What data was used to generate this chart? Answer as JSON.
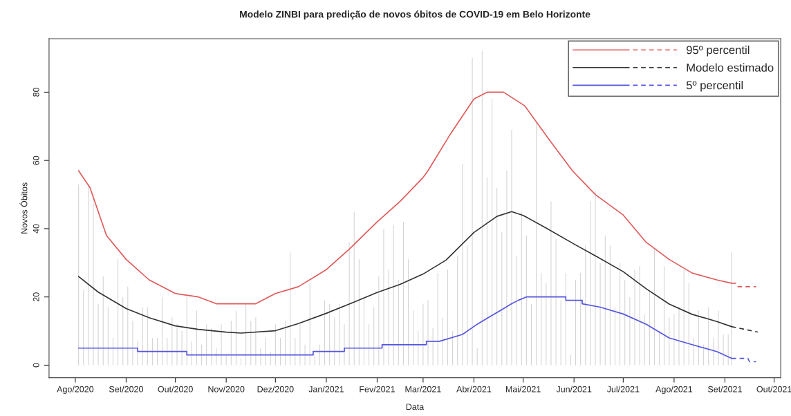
{
  "chart_data": {
    "type": "line",
    "title": "Modelo ZINBI para predição de novos óbitos de COVID-19 em Belo Horizonte",
    "xlabel": "Data",
    "ylabel": "Novos Óbitos",
    "xlim": [
      "2020-07-16",
      "2021-10-05"
    ],
    "ylim": [
      -3.68,
      95.68
    ],
    "yticks": [
      0,
      20,
      40,
      60,
      80
    ],
    "xticks": [
      {
        "value": "2020-08",
        "label": "Ago/2020"
      },
      {
        "value": "2020-09",
        "label": "Set/2020"
      },
      {
        "value": "2020-10",
        "label": "Out/2020"
      },
      {
        "value": "2020-11",
        "label": "Nov/2020"
      },
      {
        "value": "2020-12",
        "label": "Dez/2020"
      },
      {
        "value": "2021-01",
        "label": "Jan/2021"
      },
      {
        "value": "2021-02",
        "label": "Fev/2021"
      },
      {
        "value": "2021-03",
        "label": "Mar/2021"
      },
      {
        "value": "2021-04",
        "label": "Abr/2021"
      },
      {
        "value": "2021-05",
        "label": "Mai/2021"
      },
      {
        "value": "2021-06",
        "label": "Jun/2021"
      },
      {
        "value": "2021-07",
        "label": "Jul/2021"
      },
      {
        "value": "2021-08",
        "label": "Ago/2021"
      },
      {
        "value": "2021-09",
        "label": "Set/2021"
      },
      {
        "value": "2021-10",
        "label": "Out/2021"
      }
    ],
    "grid": false,
    "legend": "top right",
    "series": [
      {
        "type": "bar",
        "color": "#d3d3d3",
        "x": [
          "2020-08-03",
          "2020-08-06",
          "2020-08-09",
          "2020-08-12",
          "2020-08-15",
          "2020-08-18",
          "2020-08-21",
          "2020-08-24",
          "2020-08-27",
          "2020-08-30",
          "2020-09-02",
          "2020-09-05",
          "2020-09-08",
          "2020-09-11",
          "2020-09-14",
          "2020-09-17",
          "2020-09-20",
          "2020-09-23",
          "2020-09-26",
          "2020-09-29",
          "2020-10-02",
          "2020-10-05",
          "2020-10-08",
          "2020-10-11",
          "2020-10-14",
          "2020-10-17",
          "2020-10-20",
          "2020-10-23",
          "2020-10-26",
          "2020-10-29",
          "2020-11-01",
          "2020-11-04",
          "2020-11-07",
          "2020-11-10",
          "2020-11-13",
          "2020-11-16",
          "2020-11-19",
          "2020-11-22",
          "2020-11-25",
          "2020-11-28",
          "2020-12-01",
          "2020-12-04",
          "2020-12-07",
          "2020-12-10",
          "2020-12-13",
          "2020-12-16",
          "2020-12-19",
          "2020-12-22",
          "2020-12-25",
          "2020-12-28",
          "2020-12-31",
          "2021-01-03",
          "2021-01-06",
          "2021-01-09",
          "2021-01-12",
          "2021-01-15",
          "2021-01-18",
          "2021-01-21",
          "2021-01-24",
          "2021-01-27",
          "2021-01-30",
          "2021-02-02",
          "2021-02-05",
          "2021-02-08",
          "2021-02-11",
          "2021-02-14",
          "2021-02-17",
          "2021-02-20",
          "2021-02-23",
          "2021-02-26",
          "2021-03-01",
          "2021-03-04",
          "2021-03-07",
          "2021-03-10",
          "2021-03-13",
          "2021-03-16",
          "2021-03-19",
          "2021-03-22",
          "2021-03-25",
          "2021-03-28",
          "2021-03-31",
          "2021-04-03",
          "2021-04-06",
          "2021-04-09",
          "2021-04-12",
          "2021-04-15",
          "2021-04-18",
          "2021-04-21",
          "2021-04-24",
          "2021-04-27",
          "2021-04-30",
          "2021-05-03",
          "2021-05-06",
          "2021-05-09",
          "2021-05-12",
          "2021-05-15",
          "2021-05-18",
          "2021-05-21",
          "2021-05-24",
          "2021-05-27",
          "2021-05-30",
          "2021-06-02",
          "2021-06-05",
          "2021-06-08",
          "2021-06-11",
          "2021-06-14",
          "2021-06-17",
          "2021-06-20",
          "2021-06-23",
          "2021-06-26",
          "2021-06-29",
          "2021-07-02",
          "2021-07-05",
          "2021-07-08",
          "2021-07-11",
          "2021-07-14",
          "2021-07-17",
          "2021-07-20",
          "2021-07-23",
          "2021-07-26",
          "2021-07-29",
          "2021-08-01",
          "2021-08-04",
          "2021-08-07",
          "2021-08-10",
          "2021-08-13",
          "2021-08-16",
          "2021-08-19",
          "2021-08-22",
          "2021-08-25",
          "2021-08-28",
          "2021-08-31",
          "2021-09-03",
          "2021-09-05"
        ],
        "values": [
          53,
          22,
          53,
          50,
          18,
          26,
          17,
          8,
          31,
          20,
          23,
          13,
          7,
          17,
          17,
          8,
          8,
          20,
          8,
          14,
          12,
          10,
          20,
          7,
          16,
          6,
          12,
          11,
          5,
          12,
          3,
          13,
          16,
          2,
          18,
          13,
          14,
          5,
          8,
          4,
          12,
          8,
          13,
          33,
          8,
          12,
          6,
          24,
          3,
          6,
          19,
          18,
          14,
          18,
          12,
          36,
          45,
          31,
          20,
          12,
          17,
          26,
          40,
          28,
          41,
          25,
          42,
          31,
          16,
          10,
          18,
          19,
          11,
          27,
          14,
          28,
          10,
          32,
          59,
          35,
          90,
          5,
          92,
          55,
          78,
          52,
          39,
          57,
          69,
          32,
          45,
          38,
          18,
          71,
          27,
          24,
          48,
          37,
          19,
          27,
          3,
          25,
          27,
          35,
          48,
          51,
          30,
          38,
          35,
          17,
          30,
          25,
          20,
          28,
          29,
          15,
          22,
          34,
          10,
          29,
          14,
          15,
          17,
          28,
          24,
          8,
          16,
          6,
          17,
          8,
          16,
          9,
          9,
          33
        ]
      },
      {
        "name": "95º percentil",
        "color": "#e05a5a",
        "line_style": "solid",
        "x": [
          "2020-08-03",
          "2020-08-10",
          "2020-08-20",
          "2020-09-01",
          "2020-09-15",
          "2020-10-01",
          "2020-10-15",
          "2020-10-26",
          "2020-11-19",
          "2020-12-01",
          "2020-12-15",
          "2021-01-01",
          "2021-01-15",
          "2021-02-01",
          "2021-02-15",
          "2021-03-01",
          "2021-03-04",
          "2021-03-18",
          "2021-04-01",
          "2021-04-09",
          "2021-04-19",
          "2021-05-02",
          "2021-05-17",
          "2021-05-31",
          "2021-06-14",
          "2021-07-01",
          "2021-07-15",
          "2021-07-29",
          "2021-08-12",
          "2021-08-27",
          "2021-09-05"
        ],
        "values": [
          57,
          52,
          38,
          31,
          25,
          21,
          20,
          18,
          18,
          21,
          23,
          28,
          34,
          42,
          48,
          55,
          57,
          68,
          78,
          80,
          80,
          76,
          66,
          57,
          50,
          44,
          36,
          31,
          27,
          25,
          24
        ]
      },
      {
        "color": "#e05a5a",
        "line_style": "dashed",
        "x": [
          "2021-09-05",
          "2021-09-08",
          "2021-09-09",
          "2021-09-20"
        ],
        "values": [
          24,
          24,
          23,
          23
        ]
      },
      {
        "name": "Modelo estimado",
        "color": "#333333",
        "line_style": "solid",
        "x": [
          "2020-08-03",
          "2020-08-15",
          "2020-09-01",
          "2020-09-15",
          "2020-10-01",
          "2020-10-15",
          "2020-11-01",
          "2020-11-10",
          "2020-12-01",
          "2020-12-15",
          "2021-01-01",
          "2021-01-15",
          "2021-02-01",
          "2021-02-15",
          "2021-03-01",
          "2021-03-15",
          "2021-04-01",
          "2021-04-15",
          "2021-04-24",
          "2021-05-01",
          "2021-05-15",
          "2021-06-01",
          "2021-06-15",
          "2021-07-01",
          "2021-07-15",
          "2021-07-29",
          "2021-08-12",
          "2021-08-27",
          "2021-09-05"
        ],
        "values": [
          26,
          21.4,
          16.6,
          13.9,
          11.5,
          10.5,
          9.7,
          9.4,
          10.1,
          12.2,
          15.2,
          17.9,
          21.3,
          23.7,
          26.7,
          30.8,
          38.9,
          43.6,
          45,
          43.9,
          40.2,
          35.5,
          31.8,
          27.4,
          22.4,
          17.9,
          14.9,
          12.8,
          11.3
        ]
      },
      {
        "color": "#333333",
        "line_style": "dashed",
        "x": [
          "2021-09-05",
          "2021-09-21"
        ],
        "values": [
          11.3,
          9.7
        ]
      },
      {
        "name": "5º percentil",
        "color": "#5555e0",
        "line_style": "solid",
        "x": [
          "2020-08-03",
          "2020-09-08",
          "2020-09-08",
          "2020-10-08",
          "2020-10-08",
          "2020-12-24",
          "2020-12-24",
          "2021-01-12",
          "2021-01-12",
          "2021-02-04",
          "2021-02-04",
          "2021-03-03",
          "2021-03-03",
          "2021-03-11",
          "2021-03-25",
          "2021-04-03",
          "2021-04-10",
          "2021-04-17",
          "2021-04-24",
          "2021-04-28",
          "2021-05-03",
          "2021-05-27",
          "2021-05-27",
          "2021-06-06",
          "2021-06-06",
          "2021-06-17",
          "2021-07-01",
          "2021-07-15",
          "2021-07-29",
          "2021-08-12",
          "2021-08-27",
          "2021-09-05"
        ],
        "values": [
          5,
          5,
          4,
          4,
          3,
          3,
          4,
          4,
          5,
          5,
          6,
          6,
          7,
          7,
          9,
          12,
          14,
          16,
          18,
          19,
          20,
          20,
          19,
          19,
          18,
          17,
          15,
          12,
          8,
          6,
          4,
          2
        ]
      },
      {
        "color": "#5555e0",
        "line_style": "dashed",
        "x": [
          "2021-09-05",
          "2021-09-15",
          "2021-09-16",
          "2021-09-20"
        ],
        "values": [
          2,
          2,
          1,
          1
        ]
      }
    ]
  }
}
